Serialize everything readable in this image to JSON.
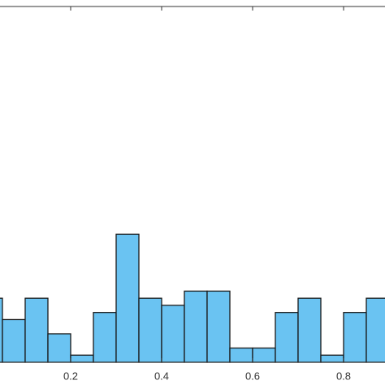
{
  "chart_data": {
    "type": "histogram",
    "bins": [
      0,
      0.05,
      0.1,
      0.15,
      0.2,
      0.25,
      0.3,
      0.35,
      0.4,
      0.45,
      0.5,
      0.55,
      0.6,
      0.65,
      0.7,
      0.75,
      0.8,
      0.85,
      0.9
    ],
    "values": [
      9,
      6,
      9,
      4,
      1,
      7,
      18,
      9,
      8,
      10,
      10,
      2,
      2,
      7,
      9,
      1,
      7,
      9
    ],
    "color": "#6ac3f2",
    "xlim": [
      0,
      0.9
    ],
    "xticks": [
      0.2,
      0.4,
      0.6,
      0.8
    ],
    "ylim": [
      0,
      50
    ]
  }
}
